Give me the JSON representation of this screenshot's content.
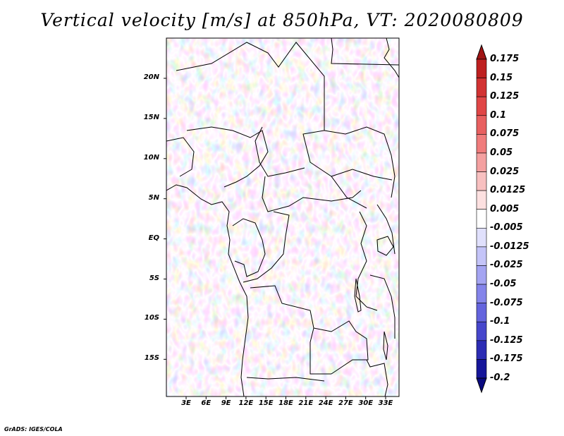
{
  "title": "Vertical velocity [m/s] at 850hPa, VT: 2020080809",
  "credit": "GrADS: IGES/COLA",
  "map": {
    "variable": "vertical velocity",
    "units": "m/s",
    "level": "850hPa",
    "valid_time": "2020080809",
    "lon_range": [
      0,
      35
    ],
    "lat_range": [
      -20,
      24
    ],
    "lat_labels": [
      "20N",
      "15N",
      "10N",
      "5N",
      "EQ",
      "5S",
      "10S",
      "15S"
    ],
    "lon_labels": [
      "3E",
      "6E",
      "9E",
      "12E",
      "15E",
      "18E",
      "21E",
      "24E",
      "27E",
      "30E",
      "33E"
    ]
  },
  "colorbar": {
    "labels": [
      "0.175",
      "0.15",
      "0.125",
      "0.1",
      "0.075",
      "0.05",
      "0.025",
      "0.0125",
      "0.005",
      "-0.005",
      "-0.0125",
      "-0.025",
      "-0.05",
      "-0.075",
      "-0.1",
      "-0.125",
      "-0.175",
      "-0.2"
    ],
    "colors": [
      "#a01414",
      "#be2020",
      "#d23232",
      "#e04646",
      "#e86060",
      "#f07c7c",
      "#f4a0a0",
      "#f8c0c0",
      "#fce0e0",
      "#ffffff",
      "#e0e0fc",
      "#c4c4f8",
      "#a4a4f2",
      "#8484ea",
      "#6464de",
      "#4646cc",
      "#2c2cb4",
      "#16169a",
      "#0a0a80"
    ]
  }
}
